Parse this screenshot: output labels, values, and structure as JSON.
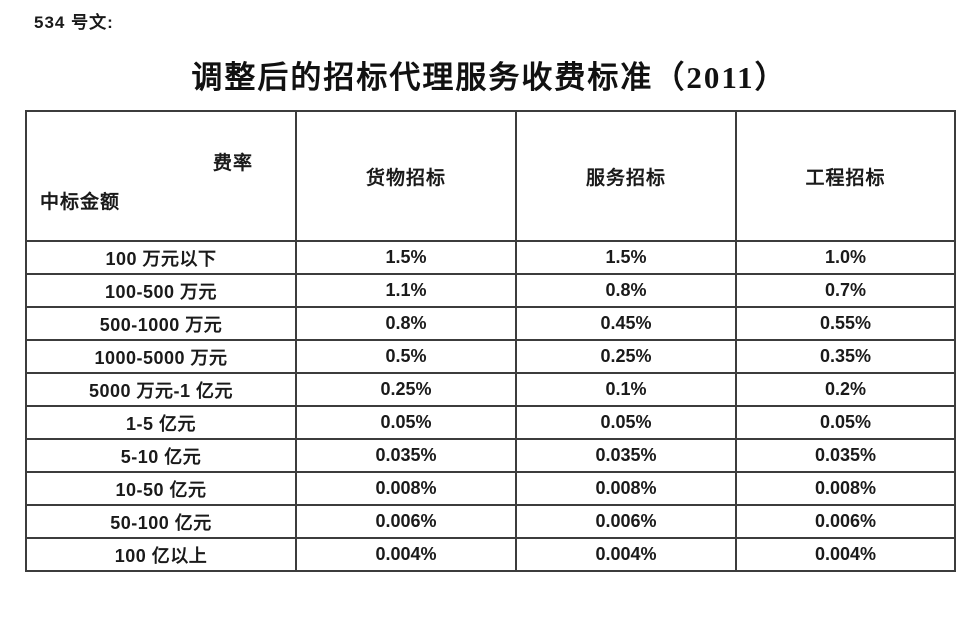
{
  "doc_number": "534 号文:",
  "title": "调整后的招标代理服务收费标准（2011）",
  "table": {
    "corner": {
      "top_right": "费率",
      "bottom_left": "中标金额"
    },
    "columns": [
      "货物招标",
      "服务招标",
      "工程招标"
    ],
    "rows": [
      {
        "label": "100 万元以下",
        "values": [
          "1.5%",
          "1.5%",
          "1.0%"
        ]
      },
      {
        "label": "100-500 万元",
        "values": [
          "1.1%",
          "0.8%",
          "0.7%"
        ]
      },
      {
        "label": "500-1000 万元",
        "values": [
          "0.8%",
          "0.45%",
          "0.55%"
        ]
      },
      {
        "label": "1000-5000 万元",
        "values": [
          "0.5%",
          "0.25%",
          "0.35%"
        ]
      },
      {
        "label": "5000 万元-1 亿元",
        "values": [
          "0.25%",
          "0.1%",
          "0.2%"
        ]
      },
      {
        "label": "1-5 亿元",
        "values": [
          "0.05%",
          "0.05%",
          "0.05%"
        ]
      },
      {
        "label": "5-10 亿元",
        "values": [
          "0.035%",
          "0.035%",
          "0.035%"
        ]
      },
      {
        "label": "10-50 亿元",
        "values": [
          "0.008%",
          "0.008%",
          "0.008%"
        ]
      },
      {
        "label": "50-100 亿元",
        "values": [
          "0.006%",
          "0.006%",
          "0.006%"
        ]
      },
      {
        "label": "100 亿以上",
        "values": [
          "0.004%",
          "0.004%",
          "0.004%"
        ]
      }
    ]
  },
  "colors": {
    "text": "#1a1a1a",
    "border": "#3c3c3c",
    "background": "#ffffff"
  }
}
